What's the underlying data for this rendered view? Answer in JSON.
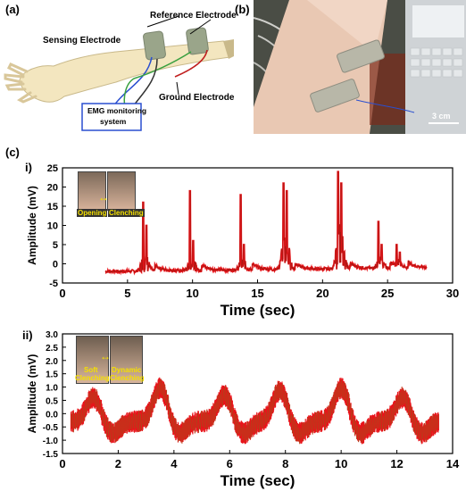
{
  "panels": {
    "a_label": "(a)",
    "b_label": "(b)",
    "c_label": "(c)",
    "sub_i": "i)",
    "sub_ii": "ii)"
  },
  "diagram": {
    "reference_electrode": "Reference Electrode",
    "sensing_electrode": "Sensing Electrode",
    "ground_electrode": "Ground Electrode",
    "emg_box_line1": "EMG monitoring",
    "emg_box_line2": "system"
  },
  "photo_b": {
    "scale_label": "3 cm"
  },
  "insets": {
    "i_left": "Opening",
    "i_right": "Clenching",
    "ii_left_1": "Soft",
    "ii_left_2": "Clenching",
    "ii_right_1": "Dynamic",
    "ii_right_2": "Clenching"
  },
  "chart_data": [
    {
      "type": "line",
      "xlabel": "Time (sec)",
      "ylabel": "Amplitude (mV)",
      "xlim": [
        0,
        30
      ],
      "ylim": [
        -5,
        25
      ],
      "xticks": [
        0,
        5,
        10,
        15,
        20,
        25,
        30
      ],
      "yticks": [
        -5,
        0,
        5,
        10,
        15,
        20,
        25
      ],
      "color": "#e8141a",
      "baseline": {
        "x": [
          3.3,
          28
        ],
        "y": [
          -2.0,
          -1.0
        ]
      },
      "events": [
        {
          "x": 6.2,
          "peak": 16,
          "secondary": 10
        },
        {
          "x": 9.8,
          "peak": 19,
          "secondary": 6
        },
        {
          "x": 13.7,
          "peak": 18,
          "secondary": 5
        },
        {
          "x": 17.0,
          "peak": 21,
          "secondary": 19
        },
        {
          "x": 21.2,
          "peak": 24,
          "secondary": 21
        },
        {
          "x": 24.3,
          "peak": 11,
          "secondary": 5
        },
        {
          "x": 25.7,
          "peak": 5,
          "secondary": 3
        }
      ]
    },
    {
      "type": "line",
      "xlabel": "Time (sec)",
      "ylabel": "Amplitude (mV)",
      "xlim": [
        0,
        14
      ],
      "ylim": [
        -1.5,
        3.0
      ],
      "xticks": [
        0,
        2,
        4,
        6,
        8,
        10,
        12,
        14
      ],
      "yticks": [
        -1.5,
        -1.0,
        -0.5,
        0.0,
        0.5,
        1.0,
        1.5,
        2.0,
        2.5,
        3.0
      ],
      "color": "#e8141a",
      "x_range": [
        0.3,
        13.5
      ],
      "bursts": [
        {
          "x": 1.1,
          "amplitude": 1.0
        },
        {
          "x": 3.5,
          "amplitude": 1.4
        },
        {
          "x": 5.8,
          "amplitude": 1.1
        },
        {
          "x": 7.8,
          "amplitude": 1.3
        },
        {
          "x": 10.0,
          "amplitude": 1.4
        },
        {
          "x": 12.2,
          "amplitude": 1.0
        }
      ],
      "noise_band": 0.3
    }
  ]
}
